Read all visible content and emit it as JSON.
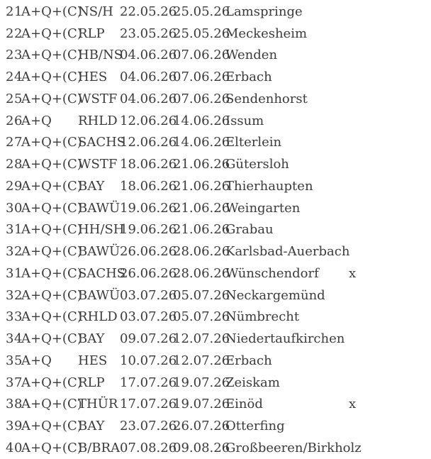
{
  "colors": {
    "text": "#3b3b3b",
    "background": "#ffffff"
  },
  "table": {
    "columns": [
      "number",
      "type",
      "region",
      "start_date",
      "end_date",
      "location",
      "marker"
    ],
    "rows": [
      {
        "number": "21",
        "type": "A+Q+(C)",
        "region": "NS/H",
        "start_date": "22.05.26",
        "end_date": "25.05.26",
        "location": "Lamspringe",
        "marker": ""
      },
      {
        "number": "22",
        "type": "A+Q+(C)",
        "region": "RLP",
        "start_date": "23.05.26",
        "end_date": "25.05.26",
        "location": "Meckesheim",
        "marker": ""
      },
      {
        "number": "23",
        "type": "A+Q+(C)",
        "region": "HB/NS",
        "start_date": "04.06.26",
        "end_date": "07.06.26",
        "location": "Wenden",
        "marker": ""
      },
      {
        "number": "24",
        "type": "A+Q+(C)",
        "region": "HES",
        "start_date": "04.06.26",
        "end_date": "07.06.26",
        "location": "Erbach",
        "marker": ""
      },
      {
        "number": "25",
        "type": "A+Q+(C)",
        "region": "WSTF",
        "start_date": "04.06.26",
        "end_date": "07.06.26",
        "location": "Sendenhorst",
        "marker": ""
      },
      {
        "number": "26",
        "type": "A+Q",
        "region": "RHLD",
        "start_date": "12.06.26",
        "end_date": "14.06.26",
        "location": "Issum",
        "marker": ""
      },
      {
        "number": "27",
        "type": "A+Q+(C)",
        "region": "SACHS",
        "start_date": "12.06.26",
        "end_date": "14.06.26",
        "location": "Elterlein",
        "marker": ""
      },
      {
        "number": "28",
        "type": "A+Q+(C)",
        "region": "WSTF",
        "start_date": "18.06.26",
        "end_date": "21.06.26",
        "location": "Gütersloh",
        "marker": ""
      },
      {
        "number": "29",
        "type": "A+Q+(C)",
        "region": "BAY",
        "start_date": "18.06.26",
        "end_date": "21.06.26",
        "location": "Thierhaupten",
        "marker": ""
      },
      {
        "number": "30",
        "type": "A+Q+(C)",
        "region": "BAWÜ",
        "start_date": "19.06.26",
        "end_date": "21.06.26",
        "location": "Weingarten",
        "marker": ""
      },
      {
        "number": "31",
        "type": "A+Q+(C)",
        "region": "HH/SH",
        "start_date": "19.06.26",
        "end_date": "21.06.26",
        "location": "Grabau",
        "marker": ""
      },
      {
        "number": "32",
        "type": "A+Q+(C)",
        "region": "BAWÜ",
        "start_date": "26.06.26",
        "end_date": "28.06.26",
        "location": "Karlsbad-Auerbach",
        "marker": ""
      },
      {
        "number": "31",
        "type": "A+Q+(C)",
        "region": "SACHS",
        "start_date": "26.06.26",
        "end_date": "28.06.26",
        "location": "Wünschendorf",
        "marker": "x"
      },
      {
        "number": "32",
        "type": "A+Q+(C)",
        "region": "BAWÜ",
        "start_date": "03.07.26",
        "end_date": "05.07.26",
        "location": "Neckargemünd",
        "marker": ""
      },
      {
        "number": "33",
        "type": "A+Q+(C)",
        "region": "RHLD",
        "start_date": "03.07.26",
        "end_date": "05.07.26",
        "location": "Nümbrecht",
        "marker": ""
      },
      {
        "number": "34",
        "type": "A+Q+(C)",
        "region": "BAY",
        "start_date": "09.07.26",
        "end_date": "12.07.26",
        "location": "Niedertaufkirchen",
        "marker": ""
      },
      {
        "number": "35",
        "type": "A+Q",
        "region": "HES",
        "start_date": "10.07.26",
        "end_date": "12.07.26",
        "location": "Erbach",
        "marker": ""
      },
      {
        "number": "37",
        "type": "A+Q+(C)",
        "region": "RLP",
        "start_date": "17.07.26",
        "end_date": "19.07.26",
        "location": "Zeiskam",
        "marker": ""
      },
      {
        "number": "38",
        "type": "A+Q+(C)",
        "region": "THÜR",
        "start_date": "17.07.26",
        "end_date": "19.07.26",
        "location": "Einöd",
        "marker": "x"
      },
      {
        "number": "39",
        "type": "A+Q+(C)",
        "region": "BAY",
        "start_date": "23.07.26",
        "end_date": "26.07.26",
        "location": "Otterfing",
        "marker": ""
      },
      {
        "number": "40",
        "type": "A+Q+(C)",
        "region": "B/BRA",
        "start_date": "07.08.26",
        "end_date": "09.08.26",
        "location": "Großbeeren/Birkholz",
        "marker": ""
      }
    ]
  }
}
